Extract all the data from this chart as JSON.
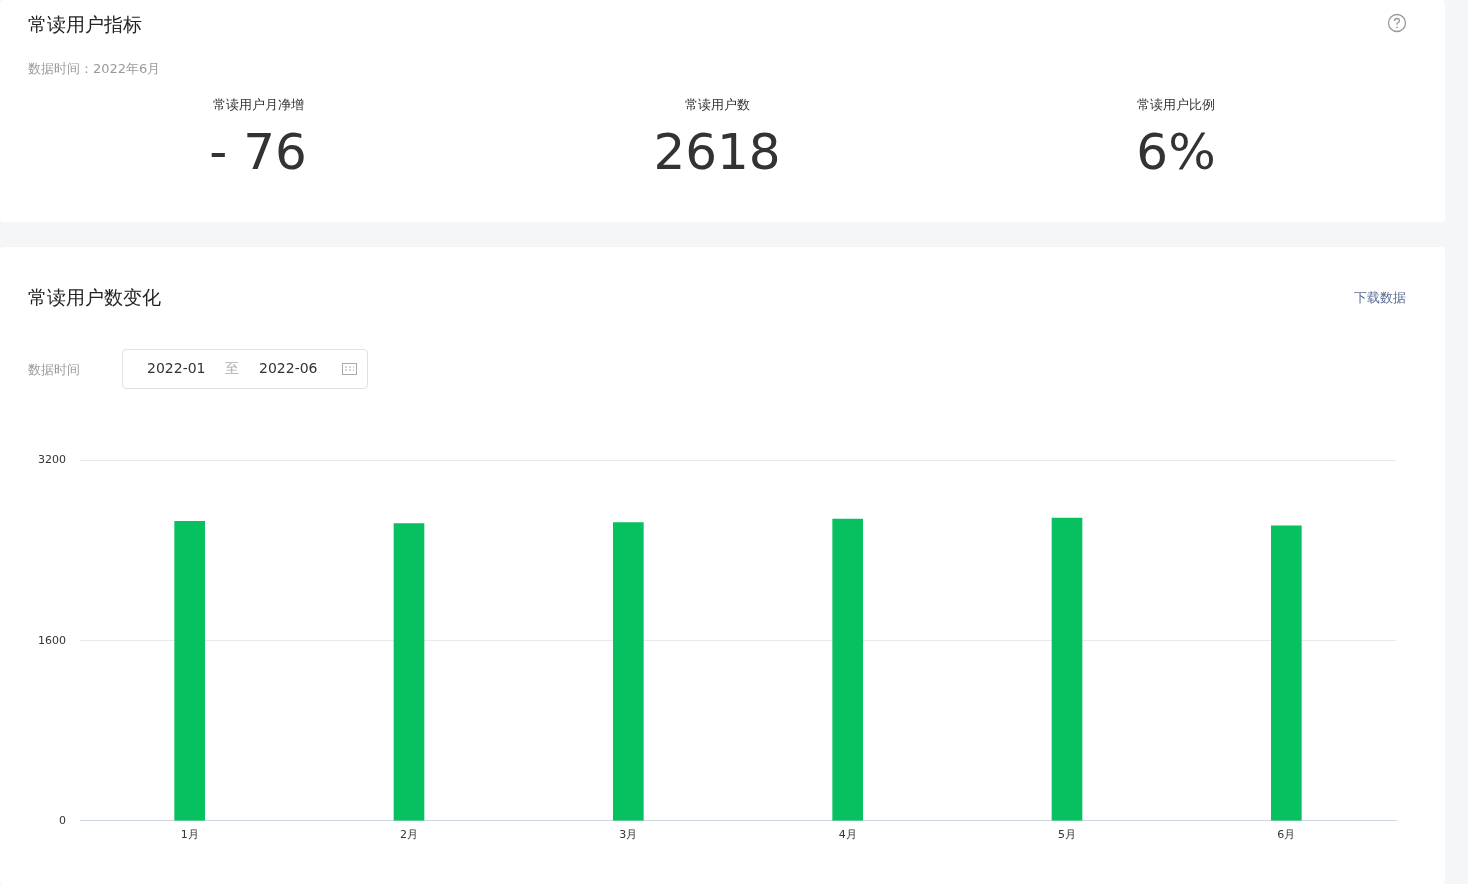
{
  "chart_data": [
    {
      "type": "other",
      "title": "常读用户指标",
      "subtitle": "数据时间：2022年6月",
      "categories": [
        "常读用户月净增",
        "常读用户数",
        "常读用户比例"
      ],
      "value_labels": [
        "- 76",
        "2618",
        "6%"
      ]
    },
    {
      "type": "bar",
      "title": "常读用户数变化",
      "annotations": [
        "下载数据",
        "数据时间",
        "2022-01",
        "至",
        "2022-06"
      ],
      "categories": [
        "1月",
        "2月",
        "3月",
        "4月",
        "5月",
        "6月"
      ],
      "values": [
        2660,
        2640,
        2650,
        2680,
        2690,
        2620
      ],
      "color": "#07c160",
      "ylim": [
        0,
        3200
      ],
      "yticks": [
        0,
        1600,
        3200
      ],
      "grid": "y",
      "legend": false
    }
  ]
}
